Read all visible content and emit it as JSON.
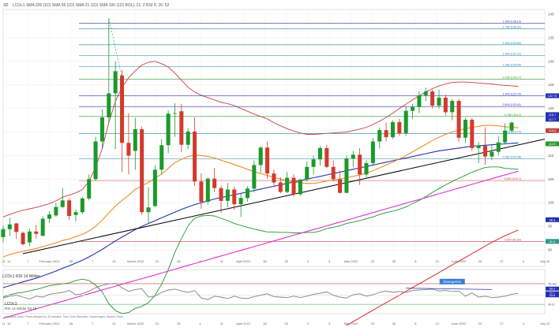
{
  "header": {
    "interval": "1D",
    "indicators_line": "LCOc1  SMA 200 (1D)  SMA 55 (1D)  SMA 21 (1D)  SMA 100 (1D)  BOLL 21; 2  RSI 9; 26; 52"
  },
  "colors": {
    "candle_up": "#1a9a2a",
    "candle_down": "#d33a2c",
    "sma200": "#e03a3a",
    "sma55": "#2430b0",
    "sma21": "#f28c28",
    "sma100": "#e02fd0",
    "boll": "#c84040",
    "trend": "#000000",
    "rsi": "#808080"
  },
  "chart_data": {
    "type": "candlestick",
    "y_ticks": [
      140,
      135,
      130,
      125,
      120,
      115,
      110,
      105,
      100,
      95,
      90
    ],
    "x_labels": [
      "11. 14",
      "7",
      "February 2022",
      "28",
      "7",
      "14",
      "March 2022",
      "21",
      "28",
      "4",
      "11",
      "April 2022",
      "18",
      "25",
      "2",
      "9",
      "May 2022",
      "23",
      "30",
      "6",
      "13",
      "June 2022",
      "20",
      "27",
      "4",
      "July 20"
    ],
    "candles": [
      {
        "o": 92.7,
        "h": 95.2,
        "l": 91.6,
        "c": 94.4
      },
      {
        "o": 94.4,
        "h": 96.8,
        "l": 93.0,
        "c": 95.4
      },
      {
        "o": 95.6,
        "h": 95.8,
        "l": 92.3,
        "c": 93.8
      },
      {
        "o": 93.6,
        "h": 93.9,
        "l": 90.9,
        "c": 91.2
      },
      {
        "o": 91.6,
        "h": 94.5,
        "l": 90.8,
        "c": 93.9
      },
      {
        "o": 93.9,
        "h": 95.3,
        "l": 92.4,
        "c": 93.4
      },
      {
        "o": 93.0,
        "h": 97.1,
        "l": 92.8,
        "c": 96.6
      },
      {
        "o": 96.6,
        "h": 98.2,
        "l": 95.7,
        "c": 97.5
      },
      {
        "o": 97.3,
        "h": 100.0,
        "l": 97.0,
        "c": 99.1
      },
      {
        "o": 99.1,
        "h": 103.1,
        "l": 98.8,
        "c": 100.5
      },
      {
        "o": 100.5,
        "h": 101.0,
        "l": 96.3,
        "c": 97.2
      },
      {
        "o": 97.4,
        "h": 98.5,
        "l": 96.1,
        "c": 98.0
      },
      {
        "o": 98.0,
        "h": 101.2,
        "l": 97.6,
        "c": 100.9
      },
      {
        "o": 100.9,
        "h": 106.0,
        "l": 100.5,
        "c": 105.0
      },
      {
        "o": 105.0,
        "h": 114.0,
        "l": 104.6,
        "c": 113.0
      },
      {
        "o": 113.0,
        "h": 119.8,
        "l": 111.5,
        "c": 118.1
      },
      {
        "o": 118.1,
        "h": 139.1,
        "l": 117.0,
        "c": 123.2
      },
      {
        "o": 123.2,
        "h": 130.0,
        "l": 111.4,
        "c": 127.9
      },
      {
        "o": 127.0,
        "h": 128.2,
        "l": 106.5,
        "c": 112.7
      },
      {
        "o": 112.7,
        "h": 119.0,
        "l": 106.0,
        "c": 110.0
      },
      {
        "o": 111.0,
        "h": 118.0,
        "l": 107.0,
        "c": 115.6
      },
      {
        "o": 115.6,
        "h": 116.2,
        "l": 97.4,
        "c": 98.0
      },
      {
        "o": 98.0,
        "h": 103.3,
        "l": 95.5,
        "c": 99.0
      },
      {
        "o": 99.3,
        "h": 108.0,
        "l": 99.0,
        "c": 107.0
      },
      {
        "o": 107.0,
        "h": 113.5,
        "l": 106.0,
        "c": 112.2
      },
      {
        "o": 112.2,
        "h": 119.6,
        "l": 110.5,
        "c": 118.9
      },
      {
        "o": 118.9,
        "h": 121.1,
        "l": 114.0,
        "c": 119.0
      },
      {
        "o": 119.4,
        "h": 121.0,
        "l": 110.7,
        "c": 112.3
      },
      {
        "o": 112.3,
        "h": 115.8,
        "l": 111.4,
        "c": 115.1
      },
      {
        "o": 115.1,
        "h": 118.1,
        "l": 103.5,
        "c": 104.5
      },
      {
        "o": 104.5,
        "h": 106.2,
        "l": 98.7,
        "c": 100.2
      },
      {
        "o": 100.2,
        "h": 105.4,
        "l": 99.6,
        "c": 105.1
      },
      {
        "o": 105.1,
        "h": 107.4,
        "l": 102.3,
        "c": 103.1
      },
      {
        "o": 103.1,
        "h": 103.6,
        "l": 97.9,
        "c": 100.4
      },
      {
        "o": 100.4,
        "h": 104.2,
        "l": 99.0,
        "c": 102.8
      },
      {
        "o": 102.8,
        "h": 103.4,
        "l": 98.5,
        "c": 99.7
      },
      {
        "o": 99.7,
        "h": 101.9,
        "l": 97.0,
        "c": 101.0
      },
      {
        "o": 101.0,
        "h": 103.5,
        "l": 100.2,
        "c": 103.0
      },
      {
        "o": 103.0,
        "h": 109.0,
        "l": 102.2,
        "c": 108.0
      },
      {
        "o": 108.0,
        "h": 112.0,
        "l": 106.4,
        "c": 111.7
      },
      {
        "o": 111.7,
        "h": 113.0,
        "l": 105.1,
        "c": 106.2
      },
      {
        "o": 106.2,
        "h": 107.0,
        "l": 103.7,
        "c": 104.3
      },
      {
        "o": 104.3,
        "h": 105.4,
        "l": 102.0,
        "c": 102.3
      },
      {
        "o": 102.3,
        "h": 106.5,
        "l": 102.0,
        "c": 105.3
      },
      {
        "o": 105.3,
        "h": 106.0,
        "l": 101.3,
        "c": 101.8
      },
      {
        "o": 101.8,
        "h": 105.1,
        "l": 101.5,
        "c": 104.9
      },
      {
        "o": 104.9,
        "h": 108.7,
        "l": 104.5,
        "c": 107.6
      },
      {
        "o": 107.6,
        "h": 110.0,
        "l": 106.0,
        "c": 109.2
      },
      {
        "o": 109.2,
        "h": 112.0,
        "l": 107.9,
        "c": 111.6
      },
      {
        "o": 111.6,
        "h": 112.3,
        "l": 107.3,
        "c": 107.6
      },
      {
        "o": 107.6,
        "h": 109.0,
        "l": 104.5,
        "c": 105.0
      },
      {
        "o": 105.0,
        "h": 106.8,
        "l": 101.9,
        "c": 102.1
      },
      {
        "o": 102.1,
        "h": 110.0,
        "l": 102.0,
        "c": 109.4
      },
      {
        "o": 109.4,
        "h": 111.0,
        "l": 107.5,
        "c": 110.2
      },
      {
        "o": 110.2,
        "h": 111.6,
        "l": 103.8,
        "c": 106.0
      },
      {
        "o": 106.0,
        "h": 109.0,
        "l": 105.1,
        "c": 108.4
      },
      {
        "o": 108.4,
        "h": 113.7,
        "l": 108.0,
        "c": 113.0
      },
      {
        "o": 113.0,
        "h": 116.0,
        "l": 111.5,
        "c": 115.4
      },
      {
        "o": 115.4,
        "h": 117.0,
        "l": 113.0,
        "c": 113.9
      },
      {
        "o": 113.9,
        "h": 117.5,
        "l": 113.5,
        "c": 117.1
      },
      {
        "o": 117.1,
        "h": 117.8,
        "l": 114.2,
        "c": 114.7
      },
      {
        "o": 114.7,
        "h": 120.5,
        "l": 114.2,
        "c": 119.5
      },
      {
        "o": 119.5,
        "h": 121.0,
        "l": 117.8,
        "c": 120.3
      },
      {
        "o": 120.3,
        "h": 123.6,
        "l": 119.0,
        "c": 122.8
      },
      {
        "o": 122.8,
        "h": 124.4,
        "l": 121.5,
        "c": 123.6
      },
      {
        "o": 123.6,
        "h": 124.0,
        "l": 120.0,
        "c": 120.6
      },
      {
        "o": 120.6,
        "h": 124.0,
        "l": 120.0,
        "c": 122.3
      },
      {
        "o": 122.3,
        "h": 122.9,
        "l": 118.5,
        "c": 119.2
      },
      {
        "o": 119.2,
        "h": 122.0,
        "l": 117.5,
        "c": 121.6
      },
      {
        "o": 121.6,
        "h": 122.0,
        "l": 113.0,
        "c": 113.8
      },
      {
        "o": 113.8,
        "h": 118.0,
        "l": 112.7,
        "c": 117.6
      },
      {
        "o": 117.6,
        "h": 118.0,
        "l": 111.0,
        "c": 111.6
      },
      {
        "o": 111.6,
        "h": 112.9,
        "l": 108.4,
        "c": 112.1
      },
      {
        "o": 112.1,
        "h": 116.0,
        "l": 108.0,
        "c": 109.8
      },
      {
        "o": 109.8,
        "h": 112.2,
        "l": 109.0,
        "c": 110.8
      },
      {
        "o": 110.8,
        "h": 114.1,
        "l": 110.0,
        "c": 112.8
      },
      {
        "o": 112.8,
        "h": 116.8,
        "l": 112.4,
        "c": 115.3
      },
      {
        "o": 115.3,
        "h": 117.2,
        "l": 115.0,
        "c": 117.0
      }
    ],
    "sma21": [
      88.5,
      89.0,
      89.4,
      89.7,
      90.0,
      90.3,
      90.7,
      91.1,
      91.5,
      92.0,
      92.3,
      92.8,
      93.3,
      94.0,
      95.0,
      96.3,
      97.8,
      99.3,
      100.5,
      101.6,
      102.8,
      103.6,
      104.3,
      105.2,
      106.1,
      107.3,
      108.5,
      109.2,
      109.8,
      110.1,
      110.0,
      109.8,
      109.5,
      109.0,
      108.6,
      108.1,
      107.6,
      107.1,
      106.6,
      106.2,
      105.8,
      105.4,
      105.0,
      104.7,
      104.4,
      104.2,
      104.1,
      104.1,
      104.3,
      104.6,
      104.8,
      105.0,
      105.3,
      105.6,
      105.9,
      106.3,
      106.8,
      107.4,
      108.0,
      108.6,
      109.3,
      110.0,
      110.8,
      111.6,
      112.4,
      113.2,
      113.9,
      114.5,
      115.0,
      115.4,
      115.7,
      116.0,
      116.2,
      116.4,
      116.4,
      116.3,
      116.1,
      116.0,
      115.9
    ],
    "sma55": [
      82.0,
      82.4,
      82.8,
      83.2,
      83.6,
      84.0,
      84.5,
      85.0,
      85.5,
      86.1,
      86.6,
      87.2,
      87.8,
      88.5,
      89.3,
      90.1,
      91.0,
      91.9,
      92.7,
      93.5,
      94.3,
      95.0,
      95.6,
      96.2,
      96.8,
      97.4,
      98.0,
      98.6,
      99.1,
      99.6,
      100.0,
      100.4,
      100.8,
      101.1,
      101.4,
      101.7,
      102.0,
      102.3,
      102.6,
      102.9,
      103.2,
      103.5,
      103.8,
      104.1,
      104.4,
      104.7,
      105.0,
      105.3,
      105.6,
      105.9,
      106.2,
      106.5,
      106.8,
      107.1,
      107.4,
      107.7,
      108.0,
      108.3,
      108.6,
      108.9,
      109.2,
      109.5,
      109.8,
      110.1,
      110.4,
      110.7,
      111.0,
      111.2,
      111.4,
      111.6,
      111.8,
      112.0,
      112.1,
      112.2,
      112.3,
      112.4,
      112.5,
      112.6,
      112.7
    ],
    "sma100": [
      75.5,
      75.9,
      76.3,
      76.7,
      77.1,
      77.5,
      77.9,
      78.3,
      78.7,
      79.1,
      79.5,
      79.9,
      80.3,
      80.7,
      81.1,
      81.5,
      81.9,
      82.3,
      82.7,
      83.1,
      83.5,
      83.9,
      84.3,
      84.7,
      85.1,
      85.5,
      85.9,
      86.3,
      86.7,
      87.1,
      87.5,
      87.9,
      88.3,
      88.7,
      89.1,
      89.5,
      89.9,
      90.3,
      90.7,
      91.1,
      91.5,
      91.9,
      92.3,
      92.7,
      93.1,
      93.5,
      93.9,
      94.3,
      94.7,
      95.1,
      95.5,
      95.9,
      96.3,
      96.7,
      97.1,
      97.5,
      97.9,
      98.3,
      98.7,
      99.1,
      99.5,
      99.9,
      100.3,
      100.7,
      101.1,
      101.5,
      101.9,
      102.3,
      102.7,
      103.1,
      103.5,
      103.9,
      104.3,
      104.7,
      105.1,
      105.5,
      105.9,
      106.3,
      106.7
    ],
    "sma200": [
      null,
      null,
      null,
      null,
      null,
      null,
      null,
      null,
      null,
      null,
      null,
      null,
      null,
      null,
      null,
      null,
      null,
      null,
      null,
      null,
      null,
      null,
      null,
      null,
      null,
      null,
      null,
      null,
      null,
      null,
      null,
      null,
      null,
      null,
      null,
      null,
      null,
      null,
      null,
      null,
      null,
      null,
      null,
      null,
      null,
      null,
      null,
      null,
      null,
      null,
      null,
      null,
      74.0,
      74.8,
      75.6,
      76.4,
      77.2,
      78.0,
      78.8,
      79.6,
      80.4,
      81.2,
      82.0,
      82.8,
      83.6,
      84.4,
      85.2,
      86.0,
      86.8,
      87.6,
      88.4,
      89.2,
      90.0,
      90.8,
      91.6,
      92.3,
      93.0,
      93.6,
      94.2
    ],
    "boll_upper": [
      97.0,
      97.5,
      98.0,
      98.4,
      98.7,
      99.0,
      99.4,
      99.8,
      100.4,
      101.2,
      101.6,
      102.1,
      102.8,
      104.5,
      107.5,
      111.5,
      117.0,
      121.5,
      124.5,
      126.5,
      128.0,
      129.2,
      129.8,
      130.0,
      129.5,
      128.8,
      127.5,
      126.0,
      124.5,
      123.5,
      122.8,
      122.3,
      121.8,
      121.3,
      121.0,
      120.6,
      120.0,
      119.4,
      118.8,
      118.3,
      117.8,
      117.0,
      116.3,
      115.7,
      115.2,
      114.8,
      114.5,
      114.5,
      114.6,
      114.7,
      114.8,
      114.9,
      115.0,
      115.3,
      115.6,
      116.0,
      116.6,
      117.3,
      118.1,
      119.0,
      120.0,
      120.9,
      121.8,
      122.7,
      123.5,
      124.2,
      124.8,
      125.2,
      125.5,
      125.6,
      125.6,
      125.5,
      125.4,
      125.3,
      125.2,
      125.0,
      124.9,
      124.8,
      124.7
    ],
    "boll_lower": [
      80.0,
      80.5,
      80.8,
      81.0,
      81.3,
      81.6,
      82.0,
      82.4,
      82.6,
      82.8,
      83.0,
      83.5,
      83.8,
      83.5,
      82.5,
      81.1,
      78.6,
      77.1,
      76.5,
      76.7,
      77.6,
      78.0,
      78.8,
      80.4,
      82.7,
      85.8,
      89.5,
      92.4,
      95.1,
      96.7,
      97.2,
      97.3,
      97.2,
      96.7,
      96.2,
      95.6,
      95.2,
      94.8,
      94.4,
      94.1,
      93.8,
      93.8,
      93.7,
      93.7,
      93.6,
      93.6,
      93.7,
      93.7,
      94.0,
      94.5,
      94.8,
      95.1,
      95.6,
      95.9,
      96.2,
      96.6,
      97.0,
      97.5,
      97.9,
      98.2,
      98.6,
      99.1,
      99.8,
      100.5,
      101.3,
      102.2,
      103.0,
      103.8,
      104.5,
      105.2,
      105.8,
      106.5,
      107.0,
      107.5,
      107.6,
      107.6,
      107.3,
      107.2,
      107.1
    ],
    "rsi": [
      48,
      52,
      54,
      50,
      46,
      52,
      50,
      56,
      58,
      60,
      64,
      55,
      57,
      63,
      70,
      75,
      78,
      79,
      70,
      62,
      66,
      68,
      50,
      52,
      60,
      65,
      67,
      63,
      60,
      64,
      48,
      45,
      52,
      50,
      47,
      52,
      48,
      47,
      51,
      54,
      57,
      51,
      50,
      49,
      52,
      49,
      52,
      56,
      58,
      61,
      54,
      50,
      48,
      55,
      57,
      52,
      55,
      60,
      63,
      60,
      62,
      60,
      64,
      65,
      66,
      67,
      63,
      64,
      62,
      63,
      52,
      59,
      50,
      52,
      49,
      50,
      52,
      56,
      58
    ],
    "fib_levels": [
      {
        "price": 138.1,
        "label": "1.000 (138.10)",
        "color": "#3030a0"
      },
      {
        "price": 136.9,
        "label": "1.786 (136.91)",
        "color": "#2080a0"
      },
      {
        "price": 133.5,
        "label": "1.618 (133.52)",
        "color": "#2080a0"
      },
      {
        "price": 131.2,
        "label": "1.500 (131.21)",
        "color": "#2080a0"
      },
      {
        "price": 128.9,
        "label": "1.382 (128.90)",
        "color": "#2080a0"
      },
      {
        "price": 126.2,
        "label": "0.786 (126.17)",
        "color": "#2a9a2a"
      },
      {
        "price": 122.7,
        "label": "1.000 (122.70)",
        "color": "#3030a0"
      },
      {
        "price": 120.4,
        "label": "0.618 (120.41)",
        "color": "#3030a0"
      },
      {
        "price": 118.3,
        "label": "0.786 (118.3)",
        "color": "#2a9a2a"
      },
      {
        "price": 114.7,
        "label": "0.618 (114.72)",
        "color": "#2080a0"
      },
      {
        "price": 109.3,
        "label": "0.382 (109.38)",
        "color": "#2080a0"
      },
      {
        "price": 104.7,
        "label": "0.000 (104.7)",
        "color": "#c04040"
      },
      {
        "price": 91.8,
        "label": "0.000 (91.83)",
        "color": "#c04040"
      }
    ],
    "right_price_tags": [
      {
        "price": 122.7,
        "label": "122.70",
        "color": "#2430b0"
      },
      {
        "price": 118.7,
        "label": "118.7",
        "color": "#2430b0"
      },
      {
        "price": 117.7,
        "label": "117.7",
        "color": "#2430b0"
      },
      {
        "price": 115.3,
        "label": "115.3",
        "color": "#c04040"
      },
      {
        "price": 112.5,
        "label": "112.5",
        "color": "#2a9a2a"
      },
      {
        "price": 96.4,
        "label": "96.4",
        "color": "#2430b0"
      },
      {
        "price": 91.8,
        "label": "91.8",
        "color": "#2a9a8a"
      }
    ],
    "rsi_axis": {
      "ticks": [
        {
          "v": 78.48,
          "label": "78.48"
        },
        {
          "v": 53.8,
          "label": "53.8"
        },
        {
          "v": 34.8,
          "label": "34.8"
        }
      ]
    },
    "rsi_tags": [
      {
        "v": 68.0,
        "label": "68.0",
        "color": "#2430b0"
      },
      {
        "v": 58.0,
        "label": "58.0",
        "color": "#2430b0"
      },
      {
        "v": 53.8,
        "label": "53.8",
        "color": "#2430b0"
      }
    ],
    "annotation": "Divergence"
  },
  "rsi_panel": {
    "title": "LCOc1  RSI 14 Wilder",
    "symbol": "LCOc1",
    "subtitle": "RSI 14 Wilder 53.16"
  },
  "footer": {
    "disclaimer": "Indicative chart. Prices delayed by 15 minutes. Time Zone: Brussels, Copenhagen, Madrid, Paris"
  }
}
